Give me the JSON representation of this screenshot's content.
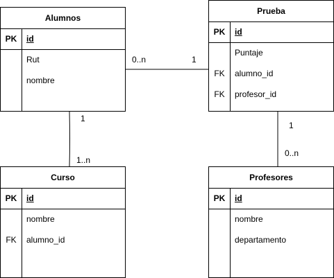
{
  "entities": {
    "alumnos": {
      "title": "Alumnos",
      "pk_key": "PK",
      "pk_attr": "id",
      "attrs": [
        {
          "key": "",
          "name": "Rut"
        },
        {
          "key": "",
          "name": "nombre"
        }
      ]
    },
    "prueba": {
      "title": "Prueba",
      "pk_key": "PK",
      "pk_attr": "id",
      "attrs": [
        {
          "key": "",
          "name": "Puntaje"
        },
        {
          "key": "FK",
          "name": "alumno_id"
        },
        {
          "key": "FK",
          "name": "profesor_id"
        }
      ]
    },
    "curso": {
      "title": "Curso",
      "pk_key": "PK",
      "pk_attr": "id",
      "attrs": [
        {
          "key": "",
          "name": "nombre"
        },
        {
          "key": "FK",
          "name": "alumno_id"
        }
      ]
    },
    "profesores": {
      "title": "Profesores",
      "pk_key": "PK",
      "pk_attr": "id",
      "attrs": [
        {
          "key": "",
          "name": "nombre"
        },
        {
          "key": "",
          "name": "departamento"
        }
      ]
    }
  },
  "relations": {
    "alumnos_prueba": {
      "from_card": "0..n",
      "to_card": "1"
    },
    "alumnos_curso": {
      "from_card": "1",
      "to_card": "1..n"
    },
    "prueba_profesores": {
      "from_card": "1",
      "to_card": "0..n"
    }
  }
}
